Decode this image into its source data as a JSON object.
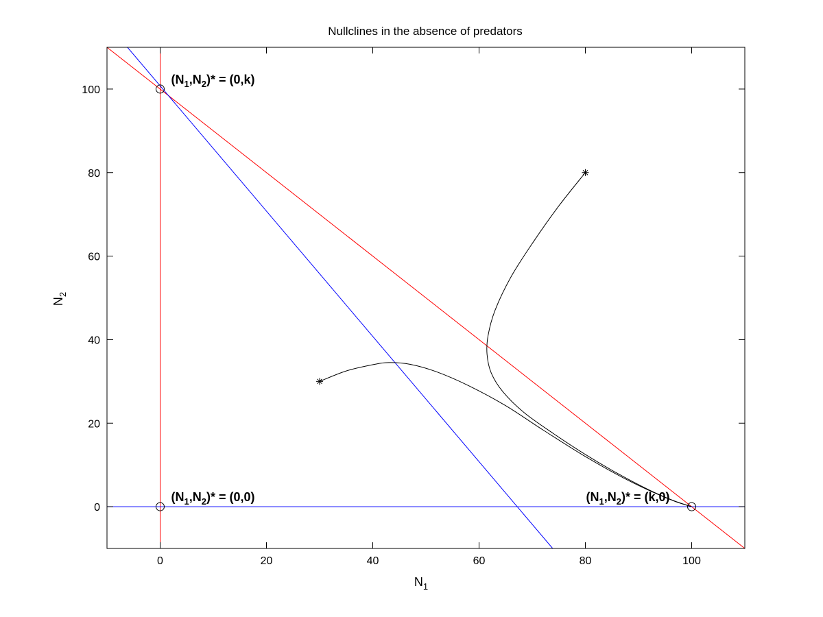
{
  "chart_data": {
    "type": "line",
    "title": "Nullclines in the absence of predators",
    "xlabel": {
      "base": "N",
      "sub": "1"
    },
    "ylabel": {
      "base": "N",
      "sub": "2"
    },
    "xlim": [
      -10,
      110
    ],
    "ylim": [
      -10,
      110
    ],
    "xticks": [
      0,
      20,
      40,
      60,
      80,
      100
    ],
    "yticks": [
      0,
      20,
      40,
      60,
      80,
      100
    ],
    "grid": false,
    "lines": [
      {
        "color": "#ff0000",
        "points": [
          [
            0,
            -10
          ],
          [
            0,
            110
          ]
        ]
      },
      {
        "color": "#ff0000",
        "points": [
          [
            -10,
            110
          ],
          [
            110,
            -10
          ]
        ]
      },
      {
        "color": "#0000ff",
        "points": [
          [
            -6.15,
            110
          ],
          [
            73.85,
            -10
          ]
        ]
      },
      {
        "color": "#0000ff",
        "points": [
          [
            -10,
            0
          ],
          [
            110,
            0
          ]
        ]
      }
    ],
    "trajectories": [
      {
        "color": "#000000",
        "start": [
          30,
          30
        ],
        "points": [
          [
            30,
            30
          ],
          [
            35,
            32.5
          ],
          [
            40,
            34
          ],
          [
            43,
            34.5
          ],
          [
            47,
            34.1
          ],
          [
            52,
            32.3
          ],
          [
            58,
            29
          ],
          [
            65,
            24.2
          ],
          [
            72,
            18.4
          ],
          [
            80,
            12
          ],
          [
            87,
            7
          ],
          [
            93,
            3.3
          ],
          [
            97,
            1.2
          ],
          [
            100,
            0
          ]
        ]
      },
      {
        "color": "#000000",
        "start": [
          80,
          80
        ],
        "points": [
          [
            80,
            80
          ],
          [
            75,
            72
          ],
          [
            70,
            63
          ],
          [
            66,
            55
          ],
          [
            63,
            47
          ],
          [
            61.7,
            41
          ],
          [
            61.5,
            36.5
          ],
          [
            62.3,
            32
          ],
          [
            64.5,
            27.5
          ],
          [
            68.5,
            22.5
          ],
          [
            74,
            17.5
          ],
          [
            80,
            12.5
          ],
          [
            86,
            8
          ],
          [
            92,
            4
          ],
          [
            96.5,
            1.5
          ],
          [
            100,
            0
          ]
        ]
      }
    ],
    "equilibria": [
      {
        "x": 0,
        "y": 100,
        "label": {
          "n1": "N",
          "sub1": "1",
          "sep": ",",
          "n2": "N",
          "sub2": "2",
          "tail": ")* = (0,k)"
        }
      },
      {
        "x": 0,
        "y": 0,
        "label": {
          "n1": "N",
          "sub1": "1",
          "sep": ",",
          "n2": "N",
          "sub2": "2",
          "tail": ")* = (0,0)"
        }
      },
      {
        "x": 100,
        "y": 0,
        "label": {
          "n1": "N",
          "sub1": "1",
          "sep": ",",
          "n2": "N",
          "sub2": "2",
          "tail": ")* = (k,0)"
        }
      }
    ]
  }
}
